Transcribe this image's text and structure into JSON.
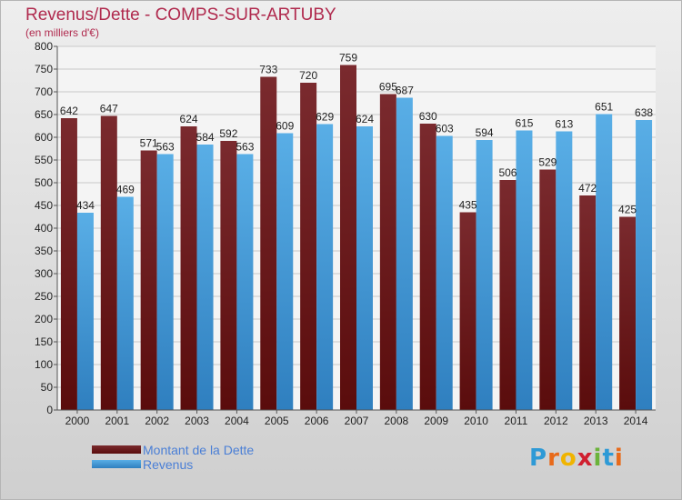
{
  "colors": {
    "title": "#b02a4e",
    "dette_top": "#7a2a2e",
    "dette_bottom": "#5a0c0c",
    "revenus_top": "#59aee6",
    "revenus_bottom": "#2f7fbf",
    "legend_text": "#4a7fd6"
  },
  "chart_data": {
    "type": "bar",
    "title": "Revenus/Dette - COMPS-SUR-ARTUBY",
    "subtitle": "(en milliers d'€)",
    "categories": [
      "2000",
      "2001",
      "2002",
      "2003",
      "2004",
      "2005",
      "2006",
      "2007",
      "2008",
      "2009",
      "2010",
      "2011",
      "2012",
      "2013",
      "2014"
    ],
    "series": [
      {
        "name": "Montant de la Dette",
        "values": [
          642,
          647,
          571,
          624,
          592,
          733,
          720,
          759,
          695,
          630,
          435,
          506,
          529,
          472,
          425
        ]
      },
      {
        "name": "Revenus",
        "values": [
          434,
          469,
          563,
          584,
          563,
          609,
          629,
          624,
          687,
          603,
          594,
          615,
          613,
          651,
          638
        ]
      }
    ],
    "yticks": [
      0,
      50,
      100,
      150,
      200,
      250,
      300,
      350,
      400,
      450,
      500,
      550,
      600,
      650,
      700,
      750,
      800
    ],
    "ylim": [
      0,
      800
    ],
    "grid": true,
    "legend_position": "bottom-left"
  },
  "logo": {
    "letters": [
      "P",
      "r",
      "o",
      "x",
      "i",
      "t",
      "i"
    ],
    "colors": [
      "#2e9ad6",
      "#e86a1a",
      "#f0b400",
      "#d01f2f",
      "#6bb33a",
      "#2e9ad6",
      "#e86a1a"
    ]
  }
}
